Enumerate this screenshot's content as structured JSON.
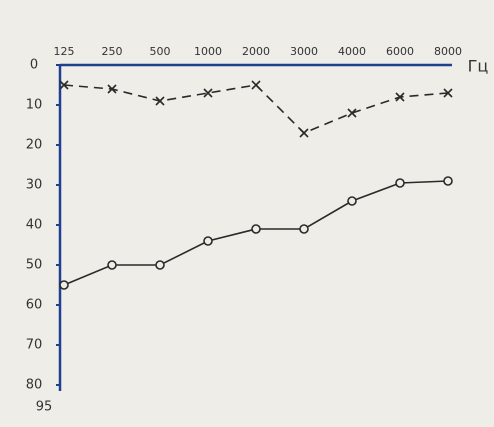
{
  "chart_data": {
    "type": "line",
    "x_unit_label": "Гц",
    "axis_end_label": "95",
    "categories": [
      "125",
      "250",
      "500",
      "1000",
      "2000",
      "3000",
      "4000",
      "6000",
      "8000"
    ],
    "series": [
      {
        "color": "#2a2a2a",
        "dashed": true,
        "marker": "x",
        "values": [
          5,
          6,
          9,
          7,
          5,
          17,
          12,
          8,
          7
        ]
      },
      {
        "color": "#2a2a2a",
        "dashed": false,
        "marker": "o",
        "values": [
          55,
          50,
          50,
          44,
          41,
          41,
          34,
          29.5,
          29
        ]
      }
    ],
    "ylim": [
      0,
      80
    ],
    "yticks": [
      0,
      10,
      20,
      30,
      40,
      50,
      60,
      70,
      80
    ],
    "y_inverted": true,
    "axis_color": "#1f3f8f"
  }
}
